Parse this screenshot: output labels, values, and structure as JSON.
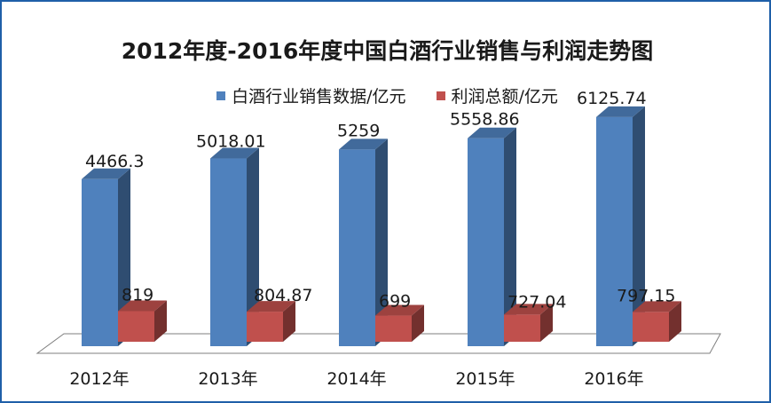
{
  "chart_data": {
    "type": "bar",
    "title": "2012年度-2016年度中国白酒行业销售与利润走势图",
    "categories": [
      "2012年",
      "2013年",
      "2014年",
      "2015年",
      "2016年"
    ],
    "series": [
      {
        "name": "白酒行业销售数据/亿元",
        "values": [
          4466.3,
          5018.01,
          5259,
          5558.86,
          6125.74
        ],
        "labels": [
          "4466.3",
          "5018.01",
          "5259",
          "5558.86",
          "6125.74"
        ],
        "color": "#4f81bd"
      },
      {
        "name": "利润总额/亿元",
        "values": [
          819,
          804.87,
          699,
          727.04,
          797.15
        ],
        "labels": [
          "819",
          "804.87",
          "699",
          "727.04",
          "797.15"
        ],
        "color": "#c0504d"
      }
    ],
    "ylim": [
      0,
      7000
    ],
    "grid": false,
    "legend": "top-center",
    "style": "3d-column"
  }
}
